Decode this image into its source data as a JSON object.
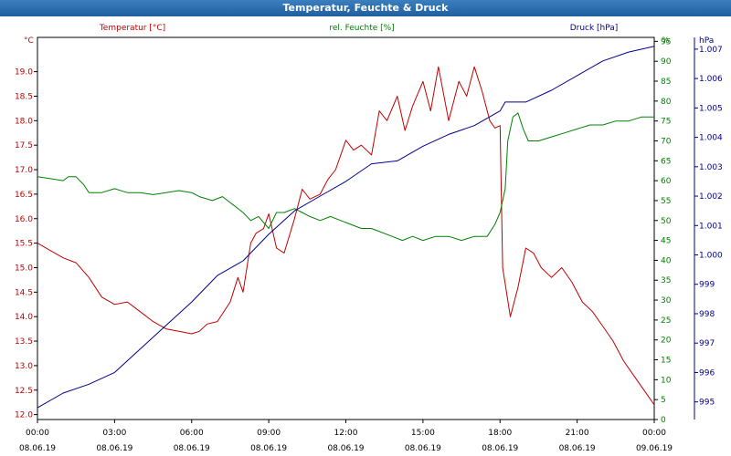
{
  "chart_data": {
    "type": "line",
    "title": "Temperatur, Feuchte & Druck",
    "x": {
      "ticks": [
        "00:00",
        "03:00",
        "06:00",
        "09:00",
        "12:00",
        "15:00",
        "18:00",
        "21:00",
        "00:00"
      ],
      "dates": [
        "08.06.19",
        "08.06.19",
        "08.06.19",
        "08.06.19",
        "08.06.19",
        "08.06.19",
        "08.06.19",
        "08.06.19",
        "09.06.19"
      ],
      "range_hours": [
        0,
        24
      ]
    },
    "axes": {
      "temperature": {
        "unit": "°C",
        "label": "Temperatur [°C]",
        "range": [
          11.9,
          19.7
        ],
        "ticks": [
          "12.0",
          "12.5",
          "13.0",
          "13.5",
          "14.0",
          "14.5",
          "15.0",
          "15.5",
          "16.0",
          "16.5",
          "17.0",
          "17.5",
          "18.0",
          "18.5",
          "19.0"
        ]
      },
      "humidity": {
        "unit": "%",
        "label": "rel. Feuchte [%]",
        "range": [
          0,
          96
        ],
        "ticks": [
          "0",
          "5",
          "10",
          "15",
          "20",
          "25",
          "30",
          "35",
          "40",
          "45",
          "50",
          "55",
          "60",
          "65",
          "70",
          "75",
          "80",
          "85",
          "90",
          "95"
        ]
      },
      "pressure": {
        "unit": "hPa",
        "label": "Druck [hPa]",
        "range": [
          994.4,
          1007.4
        ],
        "ticks": [
          "995",
          "996",
          "997",
          "998",
          "999",
          "1.000",
          "1.001",
          "1.002",
          "1.003",
          "1.004",
          "1.005",
          "1.006",
          "1.007"
        ]
      }
    },
    "series": [
      {
        "name": "Temperatur",
        "axis": "temperature",
        "color": "#c00000",
        "points": [
          [
            0,
            15.5
          ],
          [
            0.5,
            15.35
          ],
          [
            1,
            15.2
          ],
          [
            1.5,
            15.1
          ],
          [
            2,
            14.8
          ],
          [
            2.5,
            14.4
          ],
          [
            3,
            14.25
          ],
          [
            3.5,
            14.3
          ],
          [
            4,
            14.1
          ],
          [
            4.5,
            13.9
          ],
          [
            5,
            13.75
          ],
          [
            5.5,
            13.7
          ],
          [
            6,
            13.65
          ],
          [
            6.3,
            13.7
          ],
          [
            6.6,
            13.85
          ],
          [
            7,
            13.9
          ],
          [
            7.5,
            14.3
          ],
          [
            7.8,
            14.8
          ],
          [
            8,
            14.5
          ],
          [
            8.3,
            15.5
          ],
          [
            8.5,
            15.7
          ],
          [
            8.8,
            15.8
          ],
          [
            9,
            16.1
          ],
          [
            9.3,
            15.4
          ],
          [
            9.6,
            15.3
          ],
          [
            10,
            16.0
          ],
          [
            10.3,
            16.6
          ],
          [
            10.6,
            16.4
          ],
          [
            11,
            16.5
          ],
          [
            11.3,
            16.8
          ],
          [
            11.6,
            17.0
          ],
          [
            12,
            17.6
          ],
          [
            12.3,
            17.4
          ],
          [
            12.6,
            17.5
          ],
          [
            13,
            17.3
          ],
          [
            13.3,
            18.2
          ],
          [
            13.6,
            18.0
          ],
          [
            14,
            18.5
          ],
          [
            14.3,
            17.8
          ],
          [
            14.6,
            18.3
          ],
          [
            15,
            18.8
          ],
          [
            15.3,
            18.2
          ],
          [
            15.6,
            19.1
          ],
          [
            16,
            18.0
          ],
          [
            16.4,
            18.8
          ],
          [
            16.7,
            18.5
          ],
          [
            17,
            19.1
          ],
          [
            17.3,
            18.6
          ],
          [
            17.6,
            18.0
          ],
          [
            17.8,
            17.85
          ],
          [
            18,
            17.9
          ],
          [
            18.1,
            15.0
          ],
          [
            18.4,
            14.0
          ],
          [
            18.7,
            14.6
          ],
          [
            19,
            15.4
          ],
          [
            19.3,
            15.3
          ],
          [
            19.6,
            15.0
          ],
          [
            20,
            14.8
          ],
          [
            20.4,
            15.0
          ],
          [
            20.8,
            14.7
          ],
          [
            21.2,
            14.3
          ],
          [
            21.6,
            14.1
          ],
          [
            22,
            13.8
          ],
          [
            22.4,
            13.5
          ],
          [
            22.8,
            13.1
          ],
          [
            23.2,
            12.8
          ],
          [
            23.6,
            12.5
          ],
          [
            24,
            12.2
          ]
        ]
      },
      {
        "name": "rel. Feuchte",
        "axis": "humidity",
        "color": "#008000",
        "points": [
          [
            0,
            61
          ],
          [
            0.5,
            60.5
          ],
          [
            1,
            60
          ],
          [
            1.2,
            61
          ],
          [
            1.5,
            61
          ],
          [
            1.8,
            59
          ],
          [
            2,
            57
          ],
          [
            2.5,
            57
          ],
          [
            3,
            58
          ],
          [
            3.5,
            57
          ],
          [
            4,
            57
          ],
          [
            4.5,
            56.5
          ],
          [
            5,
            57
          ],
          [
            5.5,
            57.5
          ],
          [
            6,
            57
          ],
          [
            6.3,
            56
          ],
          [
            6.8,
            55
          ],
          [
            7.2,
            56
          ],
          [
            7.6,
            54
          ],
          [
            8,
            52
          ],
          [
            8.3,
            50
          ],
          [
            8.6,
            51
          ],
          [
            9,
            48
          ],
          [
            9.3,
            52
          ],
          [
            9.6,
            52
          ],
          [
            10,
            53
          ],
          [
            10.3,
            52
          ],
          [
            10.6,
            51
          ],
          [
            11,
            50
          ],
          [
            11.4,
            51
          ],
          [
            11.8,
            50
          ],
          [
            12.2,
            49
          ],
          [
            12.6,
            48
          ],
          [
            13,
            48
          ],
          [
            13.4,
            47
          ],
          [
            13.8,
            46
          ],
          [
            14.2,
            45
          ],
          [
            14.6,
            46
          ],
          [
            15,
            45
          ],
          [
            15.5,
            46
          ],
          [
            16,
            46
          ],
          [
            16.5,
            45
          ],
          [
            17,
            46
          ],
          [
            17.5,
            46
          ],
          [
            17.8,
            49
          ],
          [
            18,
            52
          ],
          [
            18.2,
            58
          ],
          [
            18.3,
            70
          ],
          [
            18.5,
            76
          ],
          [
            18.7,
            77
          ],
          [
            18.9,
            73
          ],
          [
            19.1,
            70
          ],
          [
            19.5,
            70
          ],
          [
            20,
            71
          ],
          [
            20.5,
            72
          ],
          [
            21,
            73
          ],
          [
            21.5,
            74
          ],
          [
            22,
            74
          ],
          [
            22.5,
            75
          ],
          [
            23,
            75
          ],
          [
            23.5,
            76
          ],
          [
            24,
            76
          ]
        ]
      },
      {
        "name": "Druck",
        "axis": "pressure",
        "color": "#00008b",
        "points": [
          [
            0,
            994.8
          ],
          [
            1,
            995.3
          ],
          [
            2,
            995.6
          ],
          [
            3,
            996.0
          ],
          [
            4,
            996.8
          ],
          [
            5,
            997.6
          ],
          [
            6,
            998.4
          ],
          [
            7,
            999.3
          ],
          [
            8,
            999.8
          ],
          [
            9,
            1000.7
          ],
          [
            10,
            1001.5
          ],
          [
            11,
            1002.0
          ],
          [
            12,
            1002.5
          ],
          [
            13,
            1003.1
          ],
          [
            14,
            1003.2
          ],
          [
            15,
            1003.7
          ],
          [
            16,
            1004.1
          ],
          [
            17,
            1004.4
          ],
          [
            18,
            1004.9
          ],
          [
            18.2,
            1005.2
          ],
          [
            19,
            1005.2
          ],
          [
            20,
            1005.6
          ],
          [
            21,
            1006.1
          ],
          [
            22,
            1006.6
          ],
          [
            23,
            1006.9
          ],
          [
            24,
            1007.1
          ]
        ]
      }
    ]
  }
}
